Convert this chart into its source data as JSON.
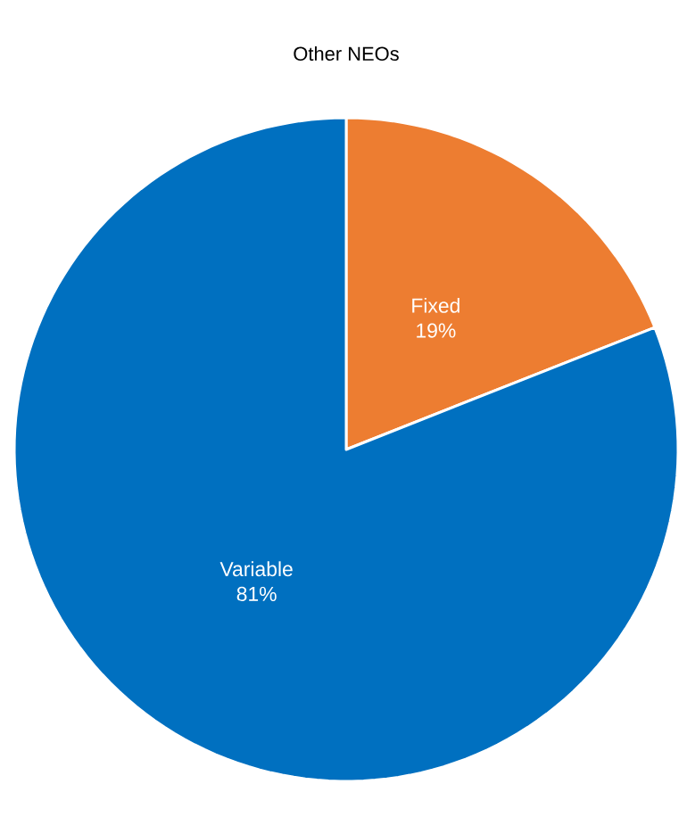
{
  "chart_data": {
    "type": "pie",
    "title": "Other NEOs",
    "categories": [
      "Fixed",
      "Variable"
    ],
    "values": [
      19,
      81
    ],
    "value_labels": [
      "19%",
      "81%"
    ],
    "colors": [
      "#ed7d31",
      "#0070c0"
    ]
  }
}
